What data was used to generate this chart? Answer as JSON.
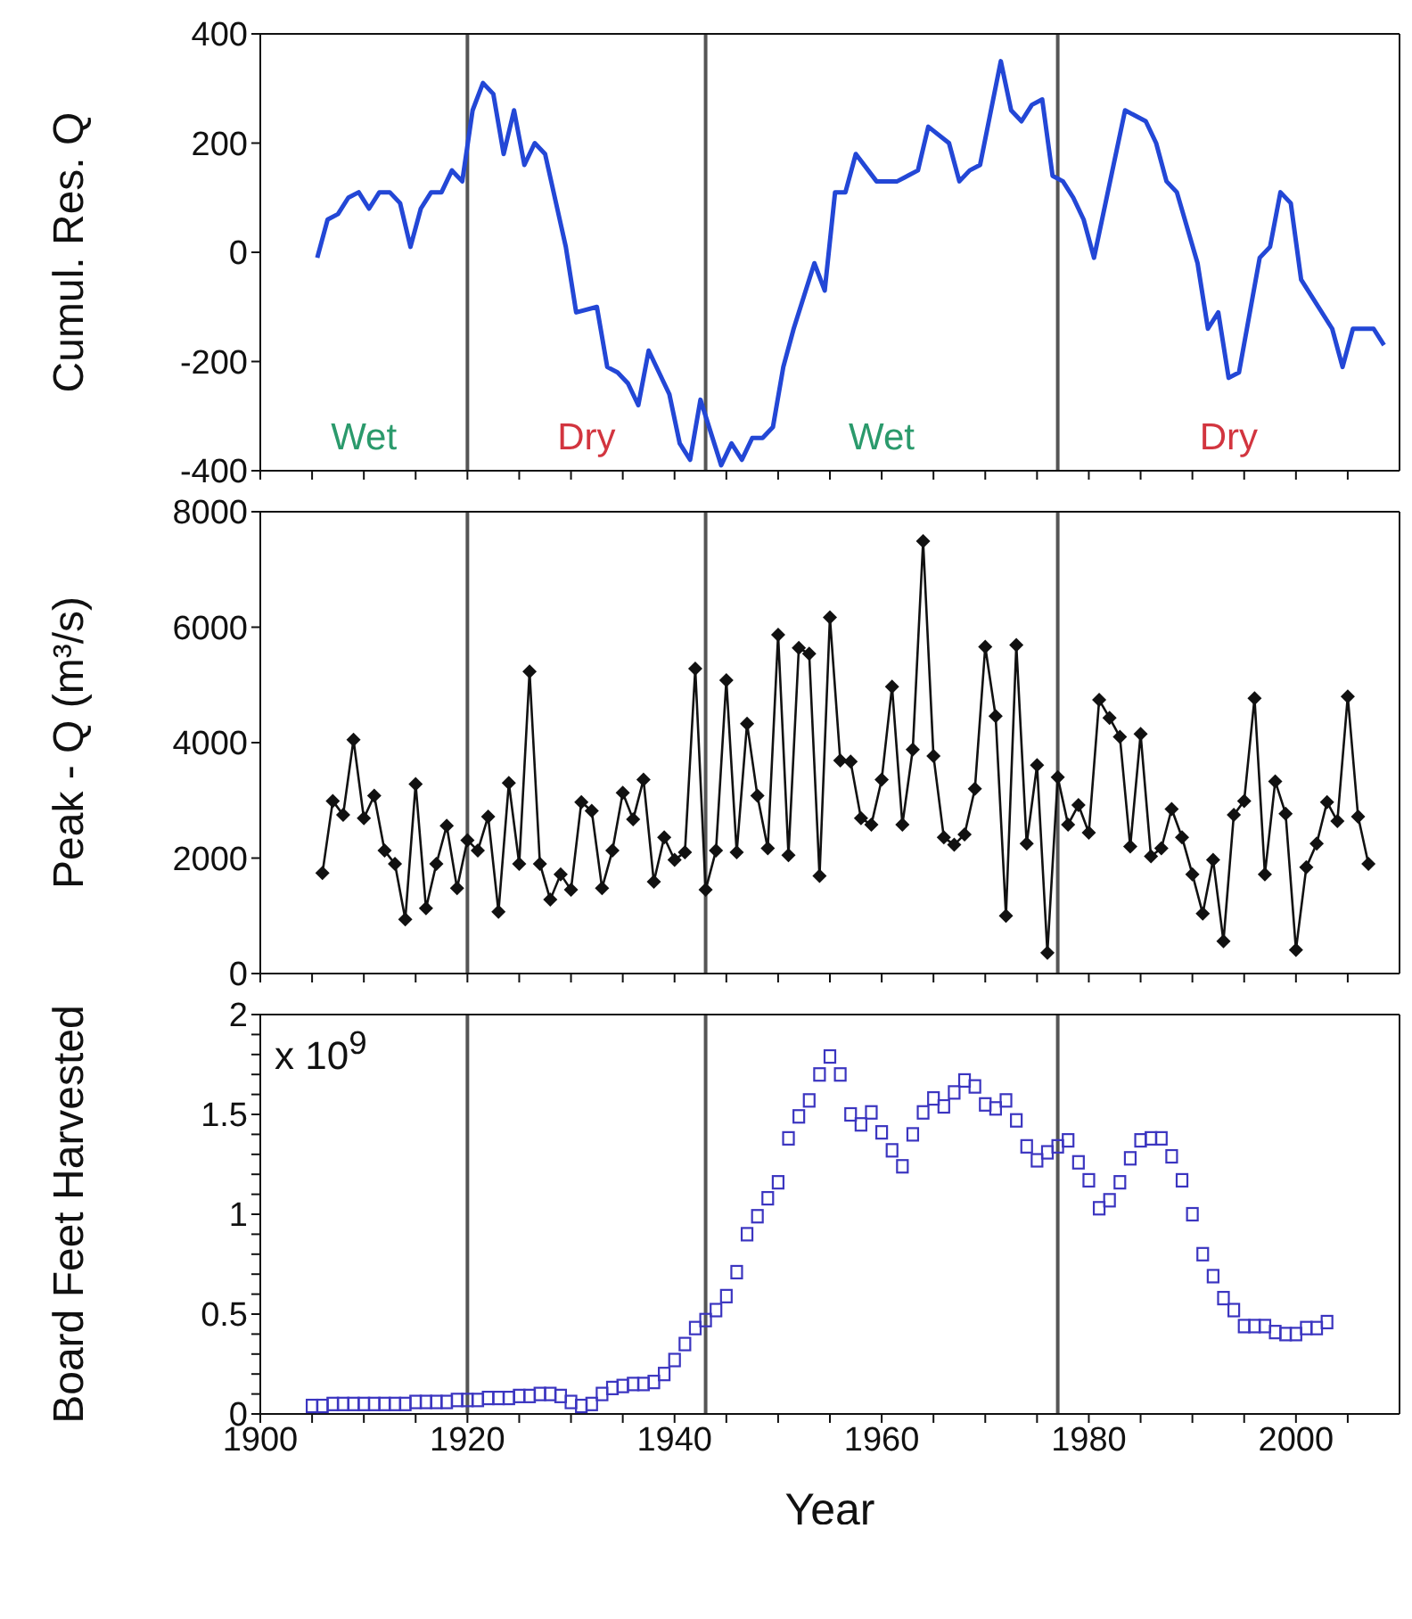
{
  "chart_data": [
    {
      "type": "line",
      "ylabel": "Cumul. Res. Q",
      "xlim": [
        1900,
        2010
      ],
      "ylim": [
        -400,
        400
      ],
      "yticks": [
        -400,
        -200,
        0,
        200,
        400
      ],
      "xticks": [
        1900,
        {
          "value": 1905,
          "label": null
        },
        {
          "value": 1910,
          "label": null
        },
        {
          "value": 1915,
          "label": null
        },
        1920,
        {
          "value": 1925,
          "label": null
        },
        {
          "value": 1930,
          "label": null
        },
        {
          "value": 1935,
          "label": null
        },
        1940,
        {
          "value": 1945,
          "label": null
        },
        {
          "value": 1950,
          "label": null
        },
        {
          "value": 1955,
          "label": null
        },
        1960,
        {
          "value": 1965,
          "label": null
        },
        {
          "value": 1970,
          "label": null
        },
        {
          "value": 1975,
          "label": null
        },
        1980,
        {
          "value": 1985,
          "label": null
        },
        {
          "value": 1990,
          "label": null
        },
        {
          "value": 1995,
          "label": null
        },
        2000,
        {
          "value": 2005,
          "label": null
        }
      ],
      "tick_labels": "y",
      "marker": "none",
      "line_style": "solid",
      "series": [
        {
          "color": "#2347d6",
          "x": [
            1905.5,
            1906.5,
            1907.5,
            1908.5,
            1909.5,
            1910.5,
            1911.5,
            1912.5,
            1913.5,
            1914.5,
            1915.5,
            1916.5,
            1917.5,
            1918.5,
            1919.5,
            1920.5,
            1921.5,
            1922.5,
            1923.5,
            1924.5,
            1925.5,
            1926.5,
            1927.5,
            1929.5,
            1930.5,
            1932.5,
            1933.5,
            1934.5,
            1935.5,
            1936.5,
            1937.5,
            1939.5,
            1940.5,
            1941.5,
            1942.5,
            1944.5,
            1945.5,
            1946.5,
            1947.5,
            1948.5,
            1949.5,
            1950.5,
            1951.5,
            1953.5,
            1954.5,
            1955.5,
            1956.5,
            1957.5,
            1959.5,
            1961.5,
            1963.5,
            1964.5,
            1966.5,
            1967.5,
            1968.5,
            1969.5,
            1971.5,
            1972.5,
            1973.5,
            1974.5,
            1975.5,
            1976.5,
            1977.5,
            1978.5,
            1979.5,
            1980.5,
            1983.5,
            1985.5,
            1986.5,
            1987.5,
            1988.5,
            1990.5,
            1991.5,
            1992.5,
            1993.5,
            1994.5,
            1996.5,
            1997.5,
            1998.5,
            1999.5,
            2000.5,
            2003.5,
            2004.5,
            2005.5,
            2006.5,
            2007.5,
            2008.5
          ],
          "values": [
            -10,
            60,
            70,
            100,
            110,
            80,
            110,
            110,
            90,
            10,
            80,
            110,
            110,
            150,
            130,
            260,
            310,
            290,
            180,
            260,
            160,
            200,
            180,
            10,
            -110,
            -100,
            -210,
            -220,
            -240,
            -280,
            -180,
            -260,
            -350,
            -380,
            -270,
            -390,
            -350,
            -380,
            -340,
            -340,
            -320,
            -210,
            -140,
            -20,
            -70,
            110,
            110,
            180,
            130,
            130,
            150,
            230,
            200,
            130,
            150,
            160,
            350,
            260,
            240,
            270,
            280,
            140,
            130,
            100,
            60,
            -10,
            260,
            240,
            200,
            130,
            110,
            -20,
            -140,
            -110,
            -230,
            -220,
            -10,
            10,
            110,
            90,
            -50,
            -140,
            -210,
            -140,
            -140,
            -140,
            -170
          ]
        }
      ],
      "annotations": [
        "Wet",
        "Dry",
        "Wet",
        "Dry"
      ],
      "ref_lines": [
        {
          "axis": "x",
          "value": 1920,
          "color": "#555555"
        },
        {
          "axis": "x",
          "value": 1943,
          "color": "#555555"
        },
        {
          "axis": "x",
          "value": 1977,
          "color": "#555555"
        }
      ]
    },
    {
      "type": "line",
      "ylabel": "Peak - Q (m³/s)",
      "xlim": [
        1900,
        2010
      ],
      "ylim": [
        0,
        8000
      ],
      "yticks": [
        0,
        2000,
        4000,
        6000,
        8000
      ],
      "xticks": [
        1900,
        {
          "value": 1905,
          "label": null
        },
        {
          "value": 1910,
          "label": null
        },
        {
          "value": 1915,
          "label": null
        },
        1920,
        {
          "value": 1925,
          "label": null
        },
        {
          "value": 1930,
          "label": null
        },
        {
          "value": 1935,
          "label": null
        },
        1940,
        {
          "value": 1945,
          "label": null
        },
        {
          "value": 1950,
          "label": null
        },
        {
          "value": 1955,
          "label": null
        },
        1960,
        {
          "value": 1965,
          "label": null
        },
        {
          "value": 1970,
          "label": null
        },
        {
          "value": 1975,
          "label": null
        },
        1980,
        {
          "value": 1985,
          "label": null
        },
        {
          "value": 1990,
          "label": null
        },
        {
          "value": 1995,
          "label": null
        },
        2000,
        {
          "value": 2005,
          "label": null
        }
      ],
      "tick_labels": "y",
      "marker": "diamond",
      "line_style": "solid",
      "series": [
        {
          "color": "#111111",
          "x": [
            1906,
            1907,
            1908,
            1909,
            1910,
            1911,
            1912,
            1913,
            1914,
            1915,
            1916,
            1917,
            1918,
            1919,
            1920,
            1921,
            1922,
            1923,
            1924,
            1925,
            1926,
            1927,
            1928,
            1929,
            1930,
            1931,
            1932,
            1933,
            1934,
            1935,
            1936,
            1937,
            1938,
            1939,
            1940,
            1941,
            1942,
            1943,
            1944,
            1945,
            1946,
            1947,
            1948,
            1949,
            1950,
            1951,
            1952,
            1953,
            1954,
            1955,
            1956,
            1957,
            1958,
            1959,
            1960,
            1961,
            1962,
            1963,
            1964,
            1965,
            1966,
            1967,
            1968,
            1969,
            1970,
            1971,
            1972,
            1973,
            1974,
            1975,
            1976,
            1977,
            1978,
            1979,
            1980,
            1981,
            1982,
            1983,
            1984,
            1985,
            1986,
            1987,
            1988,
            1989,
            1990,
            1991,
            1992,
            1993,
            1994,
            1995,
            1996,
            1997,
            1998,
            1999,
            2000,
            2001,
            2002,
            2003,
            2004,
            2005,
            2006,
            2007
          ],
          "values": [
            1740,
            2990,
            2750,
            4050,
            2690,
            3080,
            2130,
            1900,
            940,
            3280,
            1130,
            1900,
            2560,
            1480,
            2310,
            2130,
            2720,
            1070,
            3300,
            1900,
            5230,
            1900,
            1280,
            1720,
            1450,
            2970,
            2820,
            1480,
            2130,
            3130,
            2670,
            3360,
            1590,
            2360,
            1970,
            2100,
            5280,
            1450,
            2130,
            5080,
            2100,
            4330,
            3080,
            2170,
            5870,
            2050,
            5640,
            5540,
            1690,
            6170,
            3690,
            3670,
            2690,
            2580,
            3360,
            4970,
            2580,
            3880,
            7490,
            3770,
            2360,
            2230,
            2410,
            3200,
            5660,
            4460,
            1000,
            5690,
            2250,
            3610,
            360,
            3400,
            2580,
            2920,
            2440,
            4740,
            4430,
            4100,
            2200,
            4150,
            2030,
            2170,
            2850,
            2360,
            1720,
            1040,
            1970,
            560,
            2750,
            2990,
            4770,
            1720,
            3330,
            2770,
            410,
            1840,
            2250,
            2970,
            2640,
            4800,
            2720,
            1900
          ]
        }
      ],
      "ref_lines": [
        {
          "axis": "x",
          "value": 1920,
          "color": "#555555"
        },
        {
          "axis": "x",
          "value": 1943,
          "color": "#555555"
        },
        {
          "axis": "x",
          "value": 1977,
          "color": "#555555"
        }
      ]
    },
    {
      "type": "scatter",
      "ylabel": "Board Feet Harvested",
      "xlabel": "Year",
      "annotations": [
        "x 10$^{9}$"
      ],
      "xlim": [
        1900,
        2010
      ],
      "ylim": [
        0,
        2
      ],
      "yticks": [
        0,
        {
          "value": 0.1,
          "label": null
        },
        {
          "value": 0.2,
          "label": null
        },
        {
          "value": 0.3,
          "label": null
        },
        {
          "value": 0.4,
          "label": null
        },
        0.5,
        {
          "value": 0.6,
          "label": null
        },
        {
          "value": 0.7,
          "label": null
        },
        {
          "value": 0.8,
          "label": null
        },
        {
          "value": 0.9,
          "label": null
        },
        1,
        {
          "value": 1.1,
          "label": null
        },
        {
          "value": 1.2,
          "label": null
        },
        {
          "value": 1.3,
          "label": null
        },
        {
          "value": 1.4,
          "label": null
        },
        1.5,
        {
          "value": 1.6,
          "label": null
        },
        {
          "value": 1.7,
          "label": null
        },
        {
          "value": 1.8,
          "label": null
        },
        {
          "value": 1.9,
          "label": null
        },
        2
      ],
      "xticks": [
        1900,
        {
          "value": 1905,
          "label": null
        },
        {
          "value": 1910,
          "label": null
        },
        {
          "value": 1915,
          "label": null
        },
        1920,
        {
          "value": 1925,
          "label": null
        },
        {
          "value": 1930,
          "label": null
        },
        {
          "value": 1935,
          "label": null
        },
        1940,
        {
          "value": 1945,
          "label": null
        },
        {
          "value": 1950,
          "label": null
        },
        {
          "value": 1955,
          "label": null
        },
        1960,
        {
          "value": 1965,
          "label": null
        },
        {
          "value": 1970,
          "label": null
        },
        {
          "value": 1975,
          "label": null
        },
        1980,
        {
          "value": 1985,
          "label": null
        },
        {
          "value": 1990,
          "label": null
        },
        {
          "value": 1995,
          "label": null
        },
        2000,
        {
          "value": 2005,
          "label": null
        }
      ],
      "marker": "square",
      "series": [
        {
          "color": "#3b35c0",
          "x": [
            1905,
            1906,
            1907,
            1908,
            1909,
            1910,
            1911,
            1912,
            1913,
            1914,
            1915,
            1916,
            1917,
            1918,
            1919,
            1920,
            1921,
            1922,
            1923,
            1924,
            1925,
            1926,
            1927,
            1928,
            1929,
            1930,
            1931,
            1932,
            1933,
            1934,
            1935,
            1936,
            1937,
            1938,
            1939,
            1940,
            1941,
            1942,
            1943,
            1944,
            1945,
            1946,
            1947,
            1948,
            1949,
            1950,
            1951,
            1952,
            1953,
            1954,
            1955,
            1956,
            1957,
            1958,
            1959,
            1960,
            1961,
            1962,
            1963,
            1964,
            1965,
            1966,
            1967,
            1968,
            1969,
            1970,
            1971,
            1972,
            1973,
            1974,
            1975,
            1976,
            1977,
            1978,
            1979,
            1980,
            1981,
            1982,
            1983,
            1984,
            1985,
            1986,
            1987,
            1988,
            1989,
            1990,
            1991,
            1992,
            1993,
            1994,
            1995,
            1996,
            1997,
            1998,
            1999,
            2000,
            2001,
            2002,
            2003
          ],
          "values": [
            0.04,
            0.04,
            0.05,
            0.05,
            0.05,
            0.05,
            0.05,
            0.05,
            0.05,
            0.05,
            0.06,
            0.06,
            0.06,
            0.06,
            0.07,
            0.07,
            0.07,
            0.08,
            0.08,
            0.08,
            0.09,
            0.09,
            0.1,
            0.1,
            0.09,
            0.06,
            0.04,
            0.05,
            0.1,
            0.13,
            0.14,
            0.15,
            0.15,
            0.16,
            0.2,
            0.27,
            0.35,
            0.43,
            0.47,
            0.52,
            0.59,
            0.71,
            0.9,
            0.99,
            1.08,
            1.16,
            1.38,
            1.49,
            1.57,
            1.7,
            1.79,
            1.7,
            1.5,
            1.45,
            1.51,
            1.41,
            1.32,
            1.24,
            1.4,
            1.51,
            1.58,
            1.54,
            1.61,
            1.67,
            1.64,
            1.55,
            1.53,
            1.57,
            1.47,
            1.34,
            1.27,
            1.31,
            1.34,
            1.37,
            1.26,
            1.17,
            1.03,
            1.07,
            1.16,
            1.28,
            1.37,
            1.38,
            1.38,
            1.29,
            1.17,
            1,
            0.8,
            0.69,
            0.58,
            0.52,
            0.44,
            0.44,
            0.44,
            0.41,
            0.4,
            0.4,
            0.43,
            0.43,
            0.46
          ]
        }
      ],
      "ref_lines": [
        {
          "axis": "x",
          "value": 1920,
          "color": "#555555"
        },
        {
          "axis": "x",
          "value": 1943,
          "color": "#555555"
        },
        {
          "axis": "x",
          "value": 1977,
          "color": "#555555"
        }
      ]
    }
  ]
}
